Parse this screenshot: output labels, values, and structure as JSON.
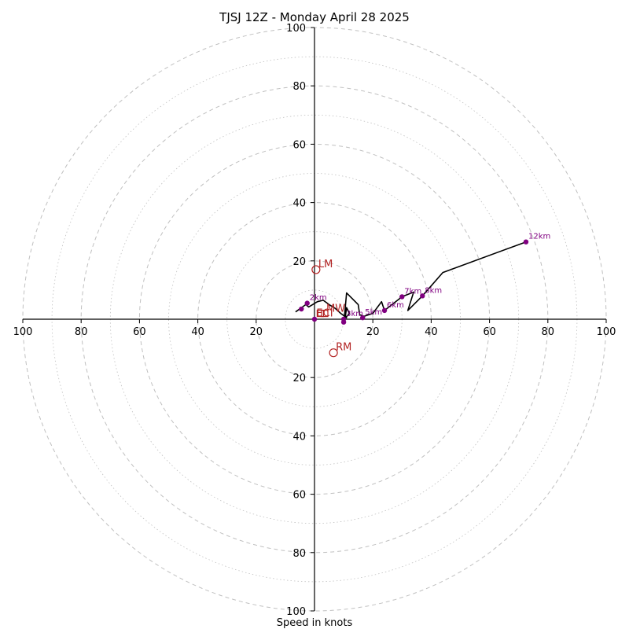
{
  "chart_data": {
    "type": "hodograph",
    "title": "TJSJ 12Z - Monday April 28 2025",
    "xlabel": "Speed in knots",
    "ylabel": "",
    "range_knots": 100,
    "ring_major_step": 20,
    "ring_minor_step": 10,
    "x_ticks": [
      "100",
      "80",
      "60",
      "40",
      "20",
      "20",
      "40",
      "60",
      "80",
      "100"
    ],
    "y_ticks": [
      "100",
      "80",
      "60",
      "40",
      "20",
      "20",
      "40",
      "60",
      "80",
      "100"
    ],
    "trace": [
      [
        -6.5,
        2.5
      ],
      [
        -3,
        5
      ],
      [
        -2,
        4.2
      ],
      [
        1,
        6
      ],
      [
        3,
        6.5
      ],
      [
        5,
        5
      ],
      [
        7,
        3.8
      ],
      [
        9,
        2
      ],
      [
        11,
        0.5
      ],
      [
        10.5,
        0.3
      ],
      [
        11,
        4
      ],
      [
        12,
        2
      ],
      [
        10.2,
        0
      ],
      [
        11,
        9
      ],
      [
        15,
        5
      ],
      [
        15.5,
        1.5
      ],
      [
        17,
        1
      ],
      [
        20,
        2
      ],
      [
        23,
        6
      ],
      [
        24,
        3
      ],
      [
        30,
        7.7
      ],
      [
        34,
        9.3
      ],
      [
        32,
        3
      ],
      [
        37,
        8
      ],
      [
        44,
        16
      ],
      [
        72.5,
        26.5
      ]
    ],
    "height_markers": [
      {
        "label": "",
        "x": -4.5,
        "y": 3.5
      },
      {
        "label": "2km",
        "x": -2.5,
        "y": 5.5
      },
      {
        "label": "",
        "x": 0,
        "y": 0
      },
      {
        "label": "3km",
        "x": 10,
        "y": 0
      },
      {
        "label": "",
        "x": 10,
        "y": -1
      },
      {
        "label": "5km",
        "x": 16.5,
        "y": 0.5
      },
      {
        "label": "6km",
        "x": 24,
        "y": 3
      },
      {
        "label": "7km",
        "x": 30,
        "y": 7.7
      },
      {
        "label": "8km",
        "x": 37,
        "y": 8
      },
      {
        "label": "12km",
        "x": 72.5,
        "y": 26.5
      }
    ],
    "storm_motion": [
      {
        "label": "LM",
        "x": 0.5,
        "y": 17
      },
      {
        "label": "MW",
        "x": 3.5,
        "y": 2
      },
      {
        "label": "RM",
        "x": 6.5,
        "y": -11.5
      },
      {
        "label": "ECI",
        "x": 2,
        "y": 2
      }
    ],
    "colors": {
      "trace": "#000000",
      "height_marker": "#800080",
      "storm_motion": "#b22222",
      "ring": "#c0c0c0",
      "axis": "#000000"
    }
  }
}
